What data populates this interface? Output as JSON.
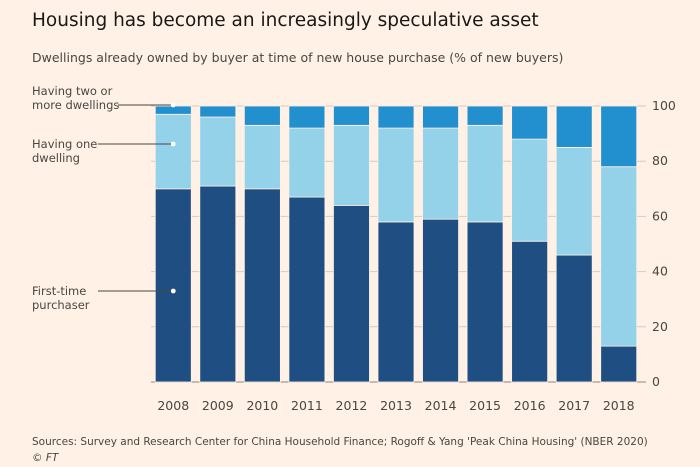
{
  "header": {
    "title": "Housing has become an increasingly speculative asset",
    "subtitle": "Dwellings already owned by buyer at time of new house purchase (% of new buyers)"
  },
  "footer": {
    "sources": "Sources: Survey and Research Center for China Household Finance; Rogoff & Yang 'Peak China Housing' (NBER 2020)",
    "credit": "© FT"
  },
  "colors": {
    "first_time": "#1f4f82",
    "one_dwelling": "#93d2e8",
    "two_or_more": "#2290cf",
    "background": "#fff1e5",
    "gridline": "#d6cbc1"
  },
  "chart_data": {
    "type": "bar",
    "stacked": true,
    "categories": [
      "2008",
      "2009",
      "2010",
      "2011",
      "2012",
      "2013",
      "2014",
      "2015",
      "2016",
      "2017",
      "2018"
    ],
    "series": [
      {
        "name": "First-time purchaser",
        "values": [
          70,
          71,
          70,
          67,
          64,
          58,
          59,
          58,
          51,
          46,
          13
        ]
      },
      {
        "name": "Having one dwelling",
        "values": [
          27,
          25,
          23,
          25,
          29,
          34,
          33,
          35,
          37,
          39,
          65
        ]
      },
      {
        "name": "Having two or more dwellings",
        "values": [
          3,
          4,
          7,
          8,
          7,
          8,
          8,
          7,
          12,
          15,
          22
        ]
      }
    ],
    "series_labels": [
      [
        "First-time",
        "purchaser"
      ],
      [
        "Having one",
        "dwelling"
      ],
      [
        "Having two or",
        "more dwellings"
      ]
    ],
    "ylim": [
      0,
      100
    ],
    "yticks": [
      0,
      20,
      40,
      60,
      80,
      100
    ],
    "y_axis_side": "right",
    "grid": true,
    "legend": "inline annotations at left"
  }
}
